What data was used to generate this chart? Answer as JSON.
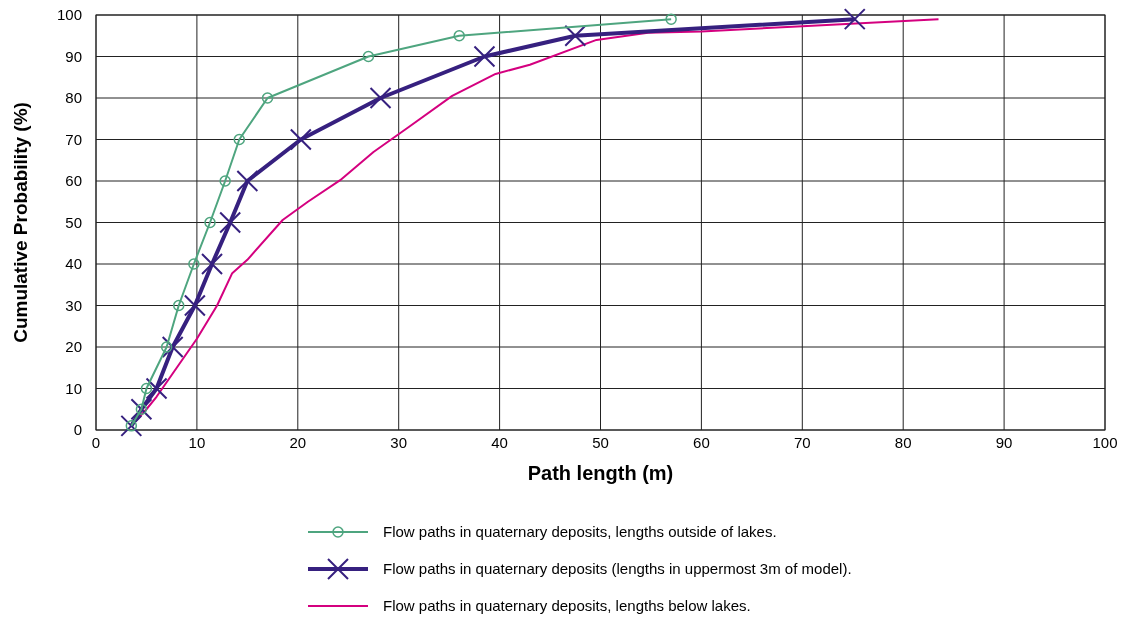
{
  "chart_data": {
    "type": "line",
    "xlabel": "Path length (m)",
    "ylabel": "Cumulative Probability (%)",
    "xlim": [
      0,
      100
    ],
    "xticks": [
      0,
      10,
      20,
      30,
      40,
      50,
      60,
      70,
      80,
      90,
      100
    ],
    "ylim": [
      0,
      100
    ],
    "yticks": [
      0,
      10,
      20,
      30,
      40,
      50,
      60,
      70,
      80,
      90,
      100
    ],
    "grid": true,
    "legend": "bottom",
    "series": [
      {
        "name": "Flow paths in quaternary deposits, lengths outside of lakes.",
        "color": "#4ea57f",
        "marker": "circle",
        "x": [
          3.5,
          4.5,
          5,
          7,
          8.2,
          9.7,
          11.3,
          12.8,
          14.2,
          17,
          27,
          36,
          57
        ],
        "values": [
          1,
          5,
          10,
          20,
          30,
          40,
          50,
          60,
          70,
          80,
          90,
          95,
          99
        ]
      },
      {
        "name": "Flow paths in quaternary deposits (lengths in uppermost 3m of model).",
        "color": "#36207f",
        "marker": "cross",
        "x": [
          3.5,
          4.5,
          6,
          7.6,
          9.8,
          11.5,
          13.3,
          15,
          20.3,
          28.2,
          38.5,
          47.5,
          75.2
        ],
        "values": [
          1,
          5,
          10,
          20,
          30,
          40,
          50,
          60,
          70,
          80,
          90,
          95,
          99
        ]
      },
      {
        "name": "Flow paths in quaternary deposits, lengths below lakes.",
        "color": "#d4007f",
        "marker": "none",
        "x": [
          3.5,
          5,
          6,
          8,
          10,
          12,
          13.5,
          15,
          18.5,
          21,
          24.2,
          27.5,
          31,
          35.3,
          39.6,
          43,
          49.6,
          54.7,
          60,
          70,
          83.5
        ],
        "values": [
          1,
          5,
          8,
          15,
          22,
          30,
          37.8,
          41,
          50.6,
          55,
          60.2,
          67,
          73,
          80.5,
          85.8,
          88,
          94,
          95.7,
          96,
          97.3,
          99
        ]
      }
    ]
  }
}
